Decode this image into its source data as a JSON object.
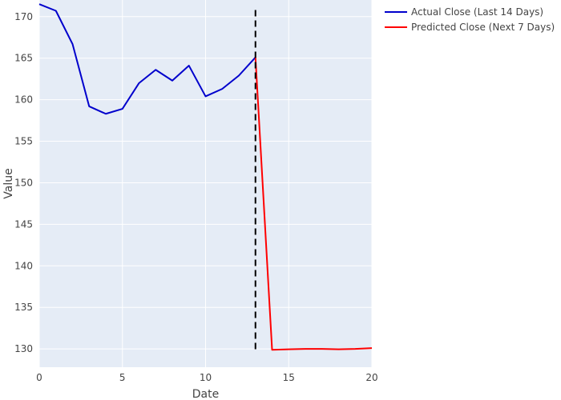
{
  "chart_data": {
    "type": "line",
    "title": "",
    "xlabel": "Date",
    "ylabel": "Value",
    "xlim": [
      0,
      20
    ],
    "ylim": [
      127.8,
      172
    ],
    "x_ticks": [
      0,
      5,
      10,
      15,
      20
    ],
    "y_ticks": [
      130,
      135,
      140,
      145,
      150,
      155,
      160,
      165,
      170
    ],
    "grid": true,
    "legend_position": "top-right",
    "background": "#e5ecf6",
    "series": [
      {
        "name": "Actual Close (Last 14 Days)",
        "color": "#0000cc",
        "x": [
          0,
          1,
          2,
          3,
          4,
          5,
          6,
          7,
          8,
          9,
          10,
          11,
          12,
          13
        ],
        "y": [
          171.5,
          170.7,
          166.7,
          159.2,
          158.3,
          158.9,
          162.0,
          163.6,
          162.3,
          164.1,
          160.4,
          161.3,
          162.9,
          165.1
        ]
      },
      {
        "name": "Predicted Close (Next 7 Days)",
        "color": "#ff0000",
        "x": [
          13,
          14,
          15,
          16,
          17,
          18,
          19,
          20
        ],
        "y": [
          165.1,
          129.9,
          129.95,
          130.0,
          130.0,
          129.95,
          130.0,
          130.1
        ]
      }
    ],
    "vertical_line": {
      "x": 13,
      "y_range": [
        129.5,
        170.8
      ],
      "style": "dashed",
      "color": "#000000"
    }
  }
}
